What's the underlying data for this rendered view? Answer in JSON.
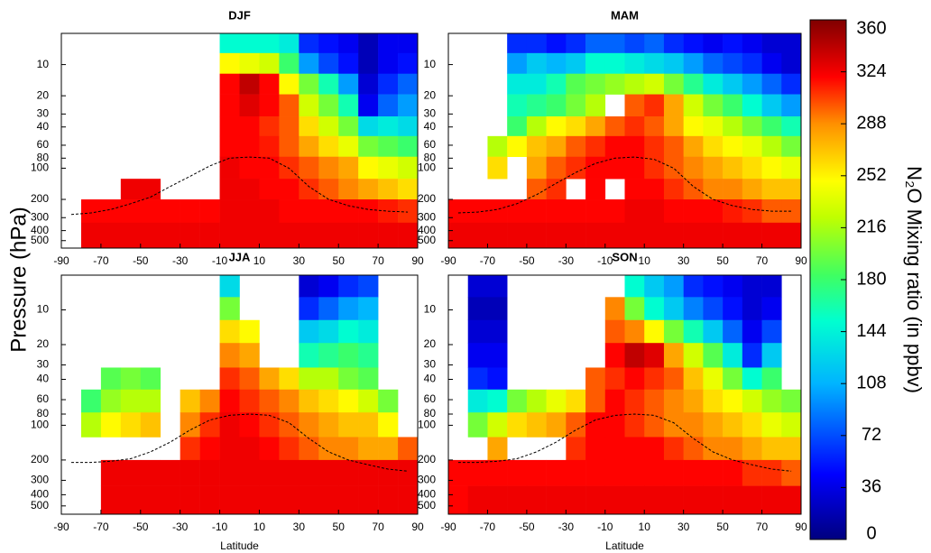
{
  "y_label": "Pressure (hPa)",
  "colorbar": {
    "label": "N₂O Mixing ratio (in ppbv)",
    "lim": [
      0,
      360
    ],
    "ticks": [
      0,
      36,
      72,
      108,
      144,
      180,
      216,
      252,
      288,
      324,
      360
    ]
  },
  "chart_data": [
    {
      "type": "heatmap",
      "title": "DJF",
      "log_y": true,
      "xlim": [
        -90,
        90
      ],
      "xticks": [
        -90,
        -70,
        -50,
        -30,
        -10,
        10,
        30,
        50,
        70,
        90
      ],
      "ylim": [
        590,
        5
      ],
      "yticks": [
        10,
        20,
        30,
        40,
        60,
        80,
        100,
        200,
        300,
        400,
        500
      ],
      "x": [
        -85,
        -75,
        -65,
        -55,
        -45,
        -35,
        -25,
        -15,
        -5,
        5,
        15,
        25,
        35,
        45,
        55,
        65,
        75,
        85
      ],
      "y": [
        6,
        10,
        15,
        25,
        40,
        60,
        100,
        160,
        250,
        450
      ],
      "values": [
        [
          null,
          null,
          null,
          null,
          null,
          null,
          null,
          null,
          150,
          150,
          150,
          140,
          60,
          50,
          40,
          20,
          40,
          40
        ],
        [
          null,
          null,
          null,
          null,
          null,
          null,
          null,
          null,
          250,
          240,
          230,
          180,
          100,
          70,
          50,
          20,
          40,
          50
        ],
        [
          null,
          null,
          null,
          null,
          null,
          null,
          null,
          null,
          320,
          340,
          320,
          250,
          200,
          160,
          100,
          30,
          60,
          80
        ],
        [
          null,
          null,
          null,
          null,
          null,
          null,
          null,
          null,
          320,
          330,
          320,
          300,
          230,
          200,
          160,
          40,
          80,
          100
        ],
        [
          null,
          null,
          null,
          null,
          null,
          null,
          null,
          null,
          320,
          320,
          310,
          300,
          260,
          230,
          200,
          130,
          140,
          130
        ],
        [
          null,
          null,
          null,
          null,
          null,
          null,
          null,
          null,
          320,
          320,
          315,
          300,
          280,
          260,
          240,
          200,
          190,
          180
        ],
        [
          null,
          null,
          null,
          null,
          null,
          null,
          null,
          null,
          325,
          320,
          320,
          310,
          300,
          290,
          280,
          250,
          240,
          230
        ],
        [
          null,
          null,
          null,
          325,
          325,
          null,
          null,
          null,
          325,
          325,
          320,
          320,
          310,
          300,
          290,
          280,
          270,
          260
        ],
        [
          null,
          320,
          320,
          320,
          320,
          320,
          320,
          320,
          325,
          325,
          325,
          320,
          320,
          320,
          320,
          320,
          315,
          310
        ],
        [
          null,
          325,
          325,
          325,
          325,
          325,
          325,
          325,
          325,
          325,
          325,
          325,
          325,
          325,
          325,
          325,
          325,
          325
        ]
      ],
      "tropopause": [
        280,
        270,
        250,
        220,
        190,
        150,
        120,
        95,
        80,
        78,
        80,
        100,
        150,
        200,
        230,
        250,
        260,
        265
      ]
    },
    {
      "type": "heatmap",
      "title": "MAM",
      "log_y": true,
      "xlim": [
        -90,
        90
      ],
      "xticks": [
        -90,
        -70,
        -50,
        -30,
        -10,
        10,
        30,
        50,
        70,
        90
      ],
      "ylim": [
        590,
        5
      ],
      "yticks": [
        10,
        20,
        30,
        40,
        60,
        80,
        100,
        200,
        300,
        400,
        500
      ],
      "x": [
        -85,
        -75,
        -65,
        -55,
        -45,
        -35,
        -25,
        -15,
        -5,
        5,
        15,
        25,
        35,
        45,
        55,
        65,
        75,
        85
      ],
      "y": [
        6,
        10,
        15,
        25,
        40,
        60,
        100,
        160,
        250,
        450
      ],
      "values": [
        [
          null,
          null,
          null,
          60,
          60,
          50,
          60,
          80,
          80,
          70,
          80,
          60,
          50,
          40,
          50,
          40,
          30,
          30
        ],
        [
          null,
          null,
          null,
          100,
          120,
          110,
          120,
          150,
          150,
          140,
          130,
          120,
          100,
          80,
          70,
          60,
          40,
          30
        ],
        [
          null,
          null,
          null,
          140,
          140,
          160,
          190,
          200,
          210,
          220,
          230,
          200,
          170,
          140,
          120,
          100,
          80,
          60
        ],
        [
          null,
          null,
          null,
          160,
          170,
          180,
          200,
          220,
          null,
          300,
          310,
          280,
          230,
          200,
          180,
          150,
          120,
          100
        ],
        [
          null,
          null,
          null,
          180,
          220,
          250,
          260,
          280,
          300,
          310,
          300,
          280,
          250,
          240,
          220,
          200,
          180,
          160
        ],
        [
          null,
          null,
          220,
          250,
          270,
          280,
          300,
          310,
          320,
          320,
          310,
          300,
          280,
          260,
          250,
          240,
          220,
          200
        ],
        [
          null,
          null,
          260,
          null,
          280,
          300,
          310,
          320,
          320,
          320,
          310,
          300,
          290,
          280,
          270,
          260,
          250,
          240
        ],
        [
          null,
          null,
          null,
          null,
          300,
          310,
          null,
          320,
          null,
          320,
          320,
          310,
          300,
          290,
          290,
          280,
          270,
          270
        ],
        [
          320,
          320,
          320,
          320,
          320,
          320,
          320,
          320,
          320,
          325,
          325,
          320,
          320,
          320,
          315,
          310,
          300,
          300
        ],
        [
          325,
          325,
          325,
          325,
          325,
          325,
          325,
          325,
          325,
          325,
          325,
          325,
          325,
          325,
          325,
          325,
          325,
          325
        ]
      ],
      "tropopause": [
        270,
        265,
        250,
        220,
        180,
        140,
        110,
        90,
        80,
        78,
        82,
        100,
        150,
        200,
        230,
        250,
        260,
        260
      ]
    },
    {
      "type": "heatmap",
      "title": "JJA",
      "x_label": "Latitude",
      "log_y": true,
      "xlim": [
        -90,
        90
      ],
      "xticks": [
        -90,
        -70,
        -50,
        -30,
        -10,
        10,
        30,
        50,
        70,
        90
      ],
      "ylim": [
        590,
        5
      ],
      "yticks": [
        10,
        20,
        30,
        40,
        60,
        80,
        100,
        200,
        300,
        400,
        500
      ],
      "x": [
        -85,
        -75,
        -65,
        -55,
        -45,
        -35,
        -25,
        -15,
        -5,
        5,
        15,
        25,
        35,
        45,
        55,
        65,
        75,
        85
      ],
      "y": [
        6,
        10,
        15,
        25,
        40,
        60,
        100,
        160,
        250,
        450
      ],
      "values": [
        [
          null,
          null,
          null,
          null,
          null,
          null,
          null,
          null,
          130,
          null,
          null,
          null,
          30,
          40,
          60,
          70,
          null,
          null
        ],
        [
          null,
          null,
          null,
          null,
          null,
          null,
          null,
          null,
          200,
          null,
          null,
          null,
          60,
          80,
          100,
          110,
          null,
          null
        ],
        [
          null,
          null,
          null,
          null,
          null,
          null,
          null,
          null,
          260,
          250,
          null,
          null,
          120,
          130,
          150,
          140,
          null,
          null
        ],
        [
          null,
          null,
          null,
          null,
          null,
          null,
          null,
          null,
          290,
          280,
          null,
          null,
          160,
          170,
          180,
          170,
          null,
          null
        ],
        [
          null,
          null,
          190,
          200,
          190,
          null,
          null,
          null,
          310,
          300,
          280,
          260,
          220,
          220,
          200,
          190,
          null,
          null
        ],
        [
          null,
          180,
          210,
          220,
          220,
          null,
          270,
          290,
          320,
          310,
          300,
          290,
          270,
          260,
          250,
          230,
          200,
          null
        ],
        [
          null,
          220,
          250,
          260,
          270,
          null,
          290,
          310,
          325,
          320,
          310,
          300,
          290,
          280,
          270,
          270,
          250,
          null
        ],
        [
          null,
          null,
          null,
          null,
          null,
          null,
          310,
          320,
          325,
          325,
          320,
          310,
          300,
          290,
          290,
          280,
          280,
          300
        ],
        [
          null,
          null,
          325,
          325,
          325,
          325,
          325,
          325,
          325,
          325,
          325,
          325,
          325,
          325,
          325,
          325,
          325,
          325
        ],
        [
          null,
          null,
          325,
          325,
          325,
          325,
          325,
          325,
          325,
          325,
          325,
          325,
          325,
          325,
          325,
          325,
          325,
          325
        ]
      ],
      "tropopause": [
        210,
        210,
        205,
        195,
        170,
        140,
        110,
        90,
        82,
        80,
        82,
        95,
        130,
        170,
        200,
        220,
        240,
        250
      ]
    },
    {
      "type": "heatmap",
      "title": "SON",
      "x_label": "Latitude",
      "log_y": true,
      "xlim": [
        -90,
        90
      ],
      "xticks": [
        -90,
        -70,
        -50,
        -30,
        -10,
        10,
        30,
        50,
        70,
        90
      ],
      "ylim": [
        590,
        5
      ],
      "yticks": [
        10,
        20,
        30,
        40,
        60,
        80,
        100,
        200,
        300,
        400,
        500
      ],
      "x": [
        -85,
        -75,
        -65,
        -55,
        -45,
        -35,
        -25,
        -15,
        -5,
        5,
        15,
        25,
        35,
        45,
        55,
        65,
        75,
        85
      ],
      "y": [
        6,
        10,
        15,
        25,
        40,
        60,
        100,
        160,
        250,
        450
      ],
      "values": [
        [
          null,
          30,
          30,
          null,
          null,
          null,
          null,
          null,
          null,
          150,
          120,
          100,
          60,
          50,
          40,
          30,
          30,
          null
        ],
        [
          null,
          20,
          20,
          null,
          null,
          null,
          null,
          null,
          290,
          200,
          150,
          120,
          90,
          70,
          50,
          30,
          40,
          null
        ],
        [
          null,
          30,
          30,
          null,
          null,
          null,
          null,
          null,
          300,
          290,
          250,
          200,
          160,
          120,
          80,
          40,
          70,
          null
        ],
        [
          null,
          40,
          40,
          null,
          null,
          null,
          null,
          null,
          320,
          340,
          330,
          280,
          230,
          190,
          140,
          60,
          120,
          null
        ],
        [
          null,
          60,
          50,
          null,
          null,
          null,
          null,
          300,
          310,
          320,
          310,
          300,
          270,
          240,
          200,
          150,
          180,
          null
        ],
        [
          null,
          140,
          150,
          200,
          220,
          240,
          260,
          300,
          320,
          310,
          300,
          290,
          280,
          260,
          250,
          230,
          210,
          200
        ],
        [
          null,
          200,
          230,
          260,
          270,
          280,
          300,
          320,
          320,
          310,
          300,
          290,
          290,
          280,
          270,
          260,
          240,
          230
        ],
        [
          null,
          null,
          280,
          null,
          null,
          null,
          310,
          320,
          320,
          320,
          320,
          310,
          300,
          290,
          290,
          280,
          270,
          270
        ],
        [
          320,
          320,
          320,
          320,
          320,
          320,
          320,
          320,
          320,
          320,
          320,
          320,
          320,
          320,
          320,
          310,
          310,
          300
        ],
        [
          320,
          325,
          325,
          325,
          325,
          325,
          325,
          325,
          325,
          325,
          325,
          325,
          325,
          325,
          325,
          325,
          325,
          325
        ]
      ],
      "tropopause": [
        210,
        210,
        205,
        195,
        170,
        140,
        110,
        90,
        82,
        80,
        82,
        95,
        130,
        170,
        200,
        220,
        240,
        250
      ]
    }
  ]
}
